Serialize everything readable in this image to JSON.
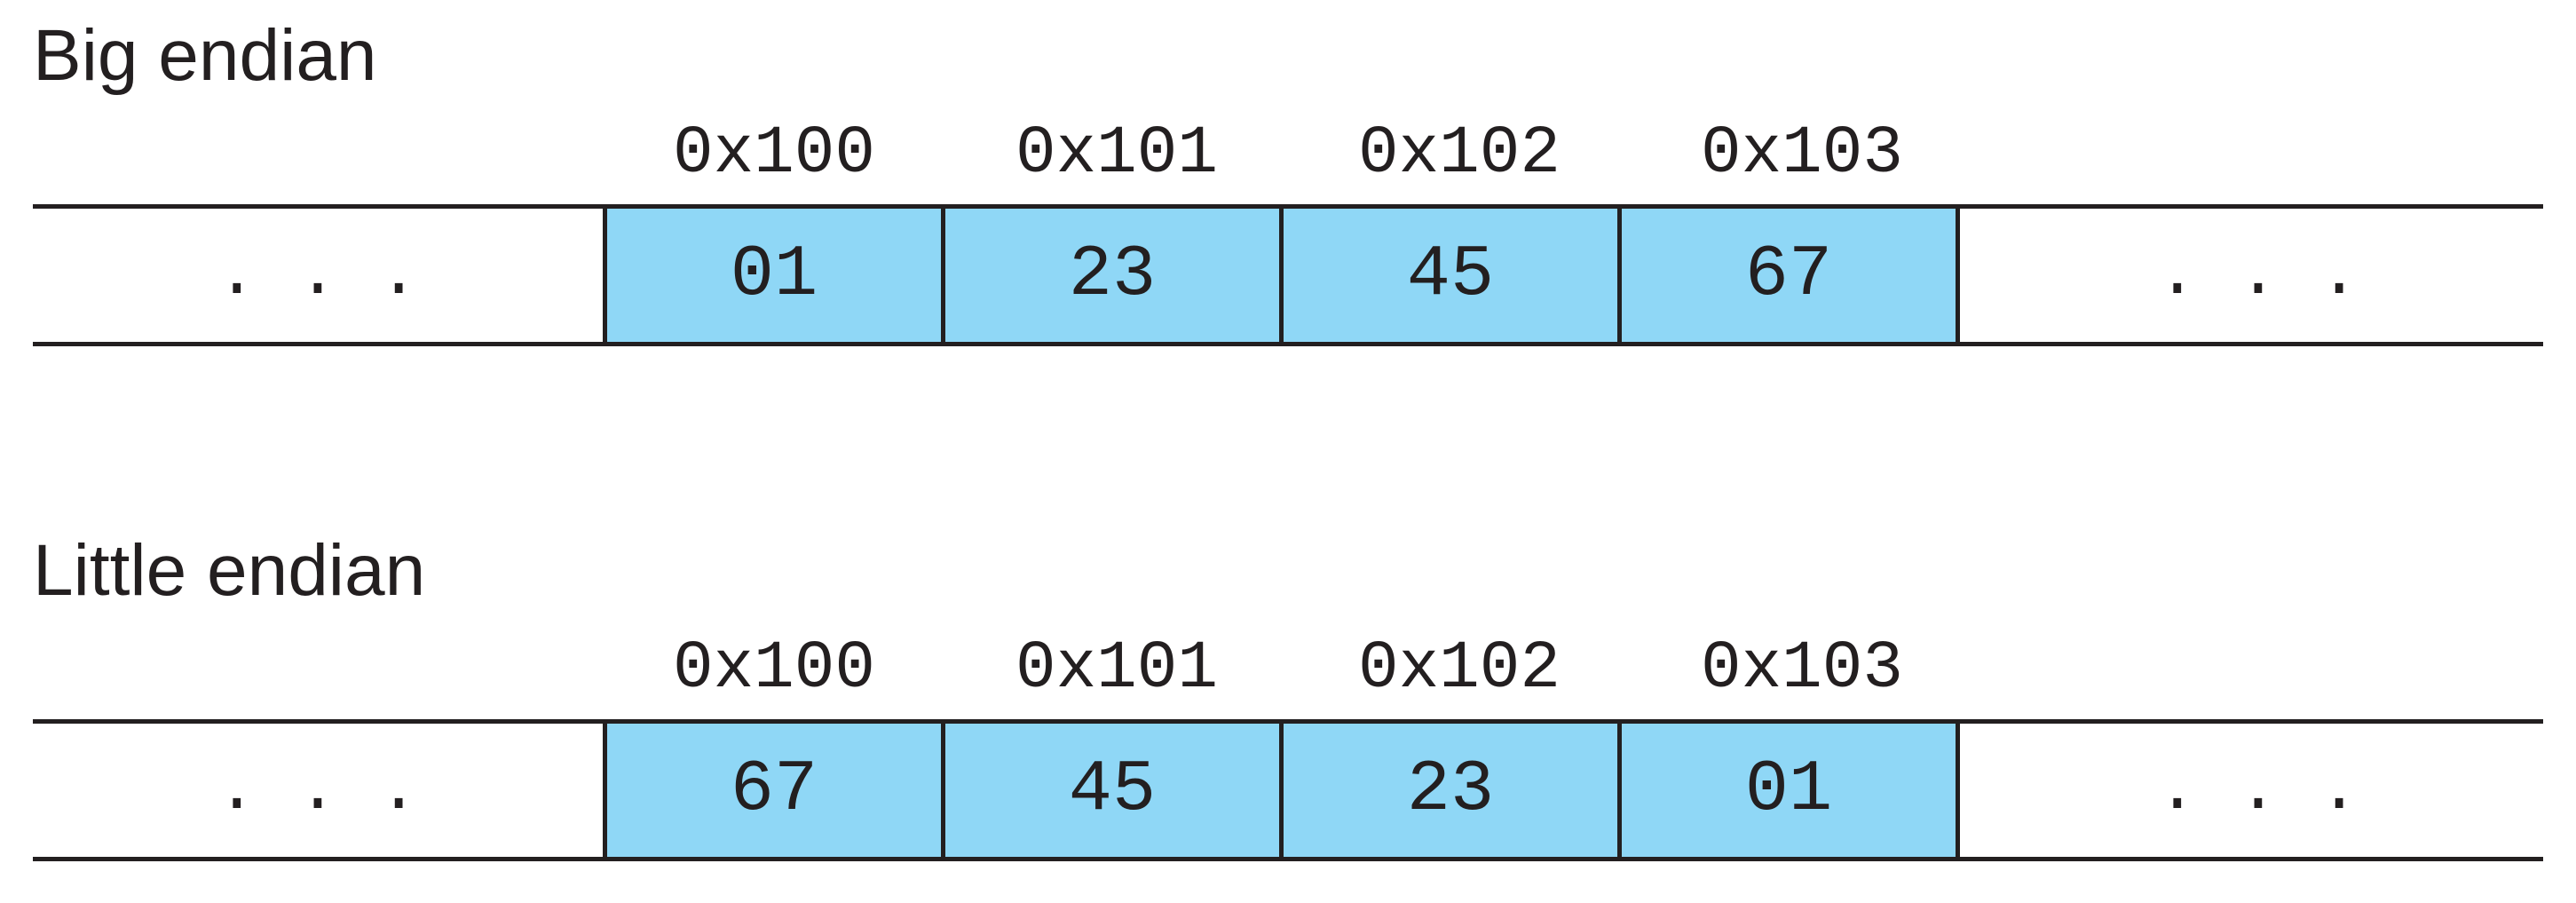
{
  "big_endian": {
    "title": "Big endian",
    "addresses": [
      "0x100",
      "0x101",
      "0x102",
      "0x103"
    ],
    "bytes": [
      "01",
      "23",
      "45",
      "67"
    ],
    "ellipsis_left": ". . .",
    "ellipsis_right": ". . ."
  },
  "little_endian": {
    "title": "Little endian",
    "addresses": [
      "0x100",
      "0x101",
      "0x102",
      "0x103"
    ],
    "bytes": [
      "67",
      "45",
      "23",
      "01"
    ],
    "ellipsis_left": ". . .",
    "ellipsis_right": ". . ."
  },
  "colors": {
    "cell_fill": "#8fd7f6",
    "line": "#231f20"
  }
}
